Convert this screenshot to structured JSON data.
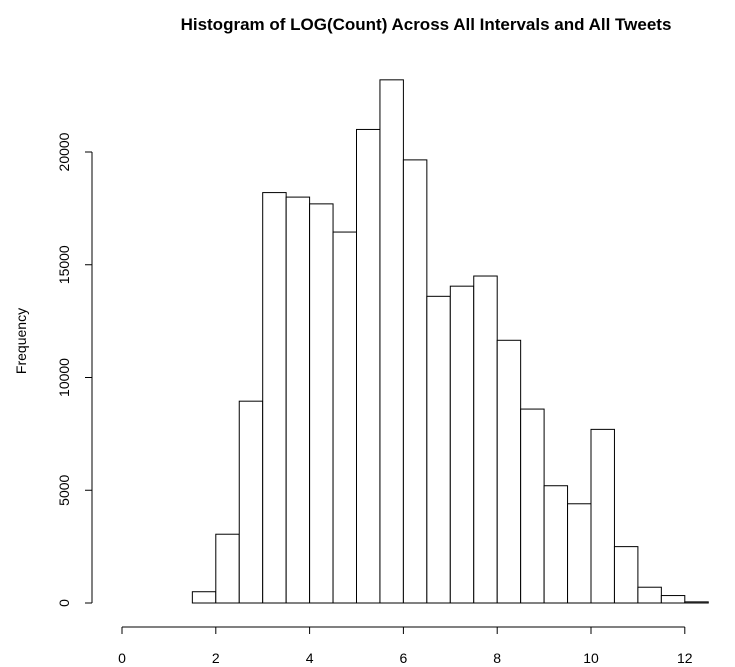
{
  "chart_data": {
    "type": "bar",
    "title": "Histogram of LOG(Count) Across All Intervals and All Tweets",
    "xlabel": "",
    "ylabel": "Frequency",
    "bin_edges": [
      0,
      0.5,
      1,
      1.5,
      2,
      2.5,
      3,
      3.5,
      4,
      4.5,
      5,
      5.5,
      6,
      6.5,
      7,
      7.5,
      8,
      8.5,
      9,
      9.5,
      10,
      10.5,
      11,
      11.5,
      12,
      12.5
    ],
    "values": [
      0,
      0,
      0,
      500,
      3050,
      8950,
      18200,
      18000,
      17700,
      16450,
      21000,
      23200,
      19650,
      13600,
      14050,
      14500,
      11650,
      8600,
      5200,
      4400,
      7700,
      2500,
      700,
      330,
      50
    ],
    "xlim": [
      0,
      12.5
    ],
    "ylim": [
      0,
      23200
    ],
    "x_ticks": [
      0,
      2,
      4,
      6,
      8,
      10,
      12
    ],
    "x_tick_labels": [
      "0",
      "2",
      "4",
      "6",
      "8",
      "10",
      "12"
    ],
    "y_ticks": [
      0,
      5000,
      10000,
      15000,
      20000
    ],
    "y_tick_labels": [
      "0",
      "5000",
      "10000",
      "15000",
      "20000"
    ],
    "grid": false,
    "bar_fill": "#ffffff",
    "bar_stroke": "#000000"
  }
}
